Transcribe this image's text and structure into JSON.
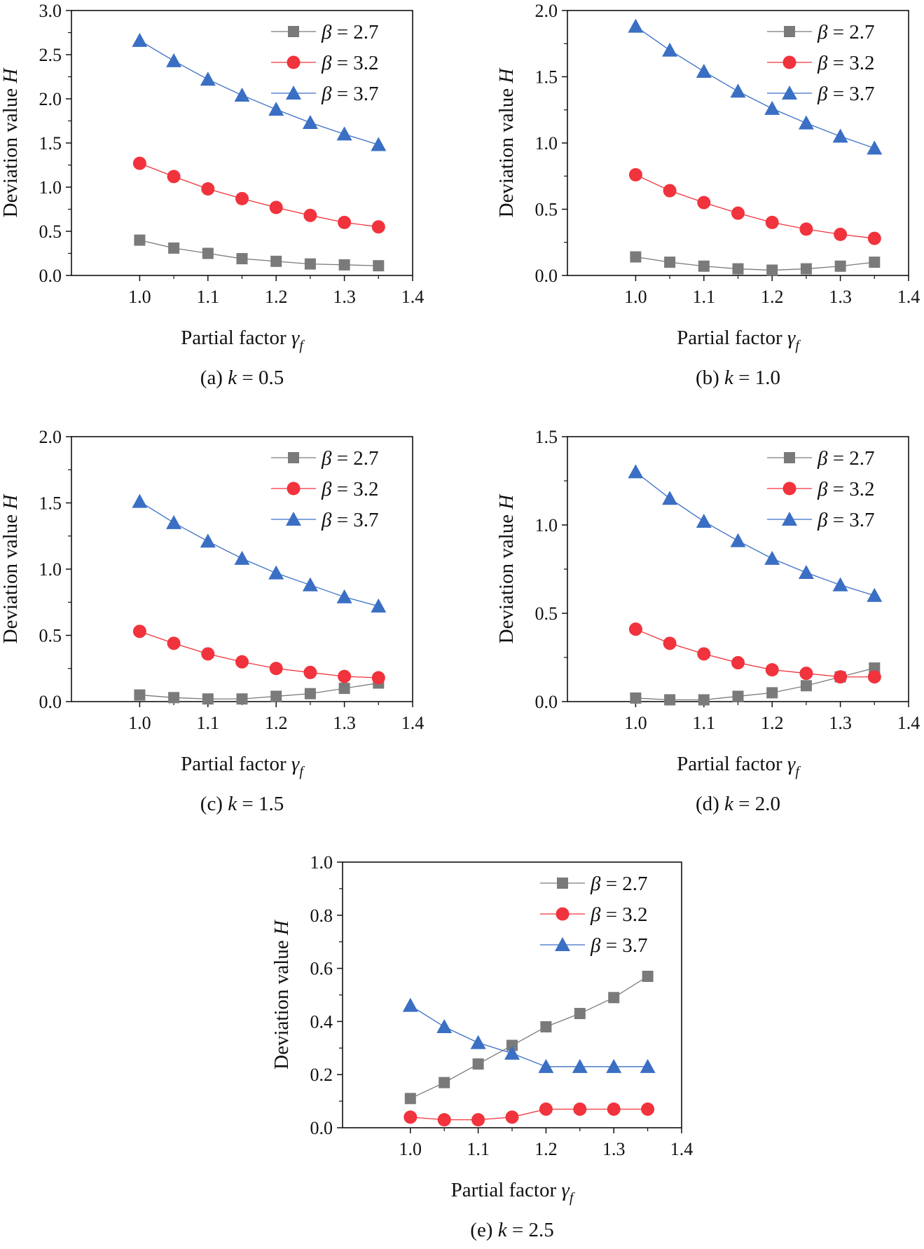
{
  "figure": {
    "colors": {
      "gray": "#7a7a7a",
      "red": "#f0333c",
      "blue": "#3a6fc4",
      "axis": "#111111"
    }
  },
  "chart_data": [
    {
      "type": "line",
      "caption": "(a) k = 0.5",
      "caption_prefix": "(a) ",
      "caption_var": "k",
      "caption_suffix": " = 0.5",
      "xlabel_text": "Partial factor ",
      "xlabel_symbol": "γ",
      "xlabel_sub": "f",
      "ylabel_text": "Deviation value ",
      "ylabel_symbol": "H",
      "xlim": [
        0.9,
        1.4
      ],
      "ylim": [
        0,
        3.0
      ],
      "xticks": [
        "1.0",
        "1.1",
        "1.2",
        "1.3",
        "1.4"
      ],
      "xtick_values": [
        1.0,
        1.1,
        1.2,
        1.3,
        1.4
      ],
      "yticks": [
        "0.0",
        "0.5",
        "1.0",
        "1.5",
        "2.0",
        "2.5",
        "3.0"
      ],
      "ytick_values": [
        0,
        0.5,
        1.0,
        1.5,
        2.0,
        2.5,
        3.0
      ],
      "legend_position": "top-right",
      "x": [
        1.0,
        1.05,
        1.1,
        1.15,
        1.2,
        1.25,
        1.3,
        1.35
      ],
      "series": [
        {
          "name": "β = 2.7",
          "symbol": "β",
          "eq": " = 2.7",
          "marker": "square",
          "color": "#7a7a7a",
          "values": [
            0.4,
            0.31,
            0.25,
            0.19,
            0.16,
            0.13,
            0.12,
            0.11
          ]
        },
        {
          "name": "β = 3.2",
          "symbol": "β",
          "eq": " = 3.2",
          "marker": "circle",
          "color": "#f0333c",
          "values": [
            1.27,
            1.12,
            0.98,
            0.87,
            0.77,
            0.68,
            0.6,
            0.55
          ]
        },
        {
          "name": "β = 3.7",
          "symbol": "β",
          "eq": " = 3.7",
          "marker": "triangle",
          "color": "#3a6fc4",
          "values": [
            2.66,
            2.43,
            2.22,
            2.04,
            1.88,
            1.73,
            1.6,
            1.48
          ]
        }
      ]
    },
    {
      "type": "line",
      "caption": "(b) k = 1.0",
      "caption_prefix": "(b) ",
      "caption_var": "k",
      "caption_suffix": " = 1.0",
      "xlabel_text": "Partial factor ",
      "xlabel_symbol": "γ",
      "xlabel_sub": "f",
      "ylabel_text": "Deviation value ",
      "ylabel_symbol": "H",
      "xlim": [
        0.9,
        1.4
      ],
      "ylim": [
        0,
        2.0
      ],
      "xticks": [
        "1.0",
        "1.1",
        "1.2",
        "1.3",
        "1.4"
      ],
      "xtick_values": [
        1.0,
        1.1,
        1.2,
        1.3,
        1.4
      ],
      "yticks": [
        "0.0",
        "0.5",
        "1.0",
        "1.5",
        "2.0"
      ],
      "ytick_values": [
        0,
        0.5,
        1.0,
        1.5,
        2.0
      ],
      "legend_position": "top-right",
      "x": [
        1.0,
        1.05,
        1.1,
        1.15,
        1.2,
        1.25,
        1.3,
        1.35
      ],
      "series": [
        {
          "name": "β = 2.7",
          "symbol": "β",
          "eq": " = 2.7",
          "marker": "square",
          "color": "#7a7a7a",
          "values": [
            0.14,
            0.1,
            0.07,
            0.05,
            0.04,
            0.05,
            0.07,
            0.1
          ]
        },
        {
          "name": "β = 3.2",
          "symbol": "β",
          "eq": " = 3.2",
          "marker": "circle",
          "color": "#f0333c",
          "values": [
            0.76,
            0.64,
            0.55,
            0.47,
            0.4,
            0.35,
            0.31,
            0.28
          ]
        },
        {
          "name": "β = 3.7",
          "symbol": "β",
          "eq": " = 3.7",
          "marker": "triangle",
          "color": "#3a6fc4",
          "values": [
            1.88,
            1.7,
            1.54,
            1.39,
            1.26,
            1.15,
            1.05,
            0.96
          ]
        }
      ]
    },
    {
      "type": "line",
      "caption": "(c) k = 1.5",
      "caption_prefix": "(c) ",
      "caption_var": "k",
      "caption_suffix": " = 1.5",
      "xlabel_text": "Partial factor ",
      "xlabel_symbol": "γ",
      "xlabel_sub": "f",
      "ylabel_text": "Deviation value ",
      "ylabel_symbol": "H",
      "xlim": [
        0.9,
        1.4
      ],
      "ylim": [
        0,
        2.0
      ],
      "xticks": [
        "1.0",
        "1.1",
        "1.2",
        "1.3",
        "1.4"
      ],
      "xtick_values": [
        1.0,
        1.1,
        1.2,
        1.3,
        1.4
      ],
      "yticks": [
        "0.0",
        "0.5",
        "1.0",
        "1.5",
        "2.0"
      ],
      "ytick_values": [
        0,
        0.5,
        1.0,
        1.5,
        2.0
      ],
      "legend_position": "top-right",
      "x": [
        1.0,
        1.05,
        1.1,
        1.15,
        1.2,
        1.25,
        1.3,
        1.35
      ],
      "series": [
        {
          "name": "β = 2.7",
          "symbol": "β",
          "eq": " = 2.7",
          "marker": "square",
          "color": "#7a7a7a",
          "values": [
            0.05,
            0.03,
            0.02,
            0.02,
            0.04,
            0.06,
            0.1,
            0.14
          ]
        },
        {
          "name": "β = 3.2",
          "symbol": "β",
          "eq": " = 3.2",
          "marker": "circle",
          "color": "#f0333c",
          "values": [
            0.53,
            0.44,
            0.36,
            0.3,
            0.25,
            0.22,
            0.19,
            0.18
          ]
        },
        {
          "name": "β = 3.7",
          "symbol": "β",
          "eq": " = 3.7",
          "marker": "triangle",
          "color": "#3a6fc4",
          "values": [
            1.51,
            1.35,
            1.21,
            1.08,
            0.97,
            0.88,
            0.79,
            0.72
          ]
        }
      ]
    },
    {
      "type": "line",
      "caption": "(d) k = 2.0",
      "caption_prefix": "(d) ",
      "caption_var": "k",
      "caption_suffix": " = 2.0",
      "xlabel_text": "Partial factor ",
      "xlabel_symbol": "γ",
      "xlabel_sub": "f",
      "ylabel_text": "Deviation value ",
      "ylabel_symbol": "H",
      "xlim": [
        0.9,
        1.4
      ],
      "ylim": [
        0,
        1.5
      ],
      "xticks": [
        "1.0",
        "1.1",
        "1.2",
        "1.3",
        "1.4"
      ],
      "xtick_values": [
        1.0,
        1.1,
        1.2,
        1.3,
        1.4
      ],
      "yticks": [
        "0.0",
        "0.5",
        "1.0",
        "1.5"
      ],
      "ytick_values": [
        0,
        0.5,
        1.0,
        1.5
      ],
      "legend_position": "top-right",
      "x": [
        1.0,
        1.05,
        1.1,
        1.15,
        1.2,
        1.25,
        1.3,
        1.35
      ],
      "series": [
        {
          "name": "β = 2.7",
          "symbol": "β",
          "eq": " = 2.7",
          "marker": "square",
          "color": "#7a7a7a",
          "values": [
            0.02,
            0.01,
            0.01,
            0.03,
            0.05,
            0.09,
            0.14,
            0.19
          ]
        },
        {
          "name": "β = 3.2",
          "symbol": "β",
          "eq": " = 3.2",
          "marker": "circle",
          "color": "#f0333c",
          "values": [
            0.41,
            0.33,
            0.27,
            0.22,
            0.18,
            0.16,
            0.14,
            0.14
          ]
        },
        {
          "name": "β = 3.7",
          "symbol": "β",
          "eq": " = 3.7",
          "marker": "triangle",
          "color": "#3a6fc4",
          "values": [
            1.3,
            1.15,
            1.02,
            0.91,
            0.81,
            0.73,
            0.66,
            0.6
          ]
        }
      ]
    },
    {
      "type": "line",
      "caption": "(e) k = 2.5",
      "caption_prefix": "(e) ",
      "caption_var": "k",
      "caption_suffix": " = 2.5",
      "xlabel_text": "Partial factor ",
      "xlabel_symbol": "γ",
      "xlabel_sub": "f",
      "ylabel_text": "Deviation value ",
      "ylabel_symbol": "H",
      "xlim": [
        0.9,
        1.4
      ],
      "ylim": [
        0,
        1.0
      ],
      "xticks": [
        "1.0",
        "1.1",
        "1.2",
        "1.3",
        "1.4"
      ],
      "xtick_values": [
        1.0,
        1.1,
        1.2,
        1.3,
        1.4
      ],
      "yticks": [
        "0.0",
        "0.2",
        "0.4",
        "0.6",
        "0.8",
        "1.0"
      ],
      "ytick_values": [
        0,
        0.2,
        0.4,
        0.6,
        0.8,
        1.0
      ],
      "legend_position": "top-right",
      "x": [
        1.0,
        1.05,
        1.1,
        1.15,
        1.2,
        1.25,
        1.3,
        1.35
      ],
      "series": [
        {
          "name": "β = 2.7",
          "symbol": "β",
          "eq": " = 2.7",
          "marker": "square",
          "color": "#7a7a7a",
          "values": [
            0.11,
            0.17,
            0.24,
            0.31,
            0.38,
            0.43,
            0.49,
            0.57
          ]
        },
        {
          "name": "β = 3.2",
          "symbol": "β",
          "eq": " = 3.2",
          "marker": "circle",
          "color": "#f0333c",
          "values": [
            0.04,
            0.03,
            0.03,
            0.04,
            0.07,
            0.07,
            0.07,
            0.07
          ]
        },
        {
          "name": "β = 3.7",
          "symbol": "β",
          "eq": " = 3.7",
          "marker": "triangle",
          "color": "#3a6fc4",
          "values": [
            0.46,
            0.38,
            0.32,
            0.28,
            0.23,
            0.23,
            0.23,
            0.23
          ]
        }
      ]
    }
  ]
}
